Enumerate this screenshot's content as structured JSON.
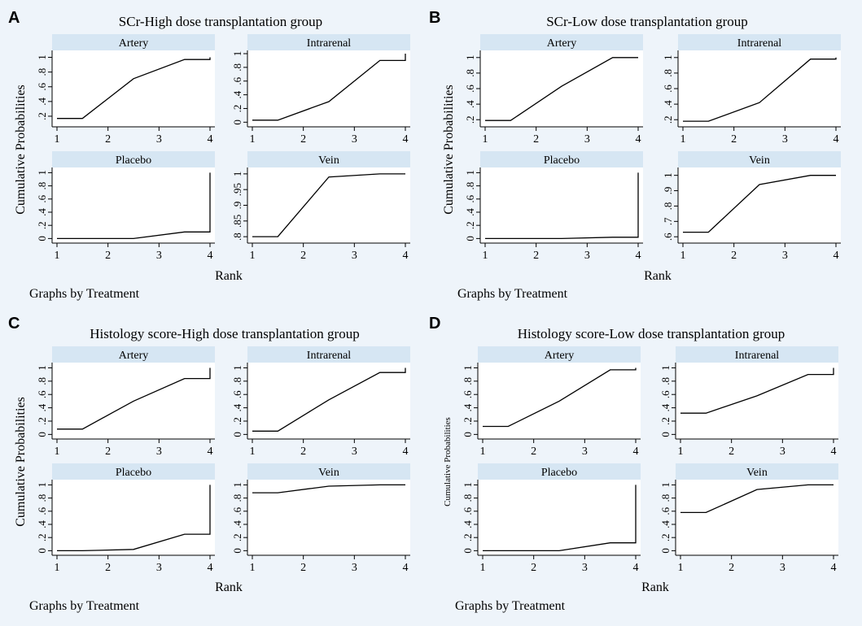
{
  "figure": {
    "xlabel": "Rank",
    "ylabel": "Cumulative Probabilities",
    "note": "Graphs by Treatment",
    "colors": {
      "background": "#eef4fa",
      "plot_bg": "#ffffff",
      "strip_bg": "#d6e6f3",
      "line": "#000000"
    }
  },
  "chart_data": [
    {
      "type": "line",
      "letter": "A",
      "title": "SCr-High dose transplantation group",
      "xlabel": "Rank",
      "ylabel": "Cumulative Probabilities",
      "xlim": [
        1,
        4
      ],
      "x_ticks": [
        "1",
        "2",
        "3",
        "4"
      ],
      "panels": [
        {
          "name": "Artery",
          "ylim": [
            0.1,
            1.05
          ],
          "y_ticks": [
            {
              "v": 0.2,
              "label": ".2"
            },
            {
              "v": 0.4,
              "label": ".4"
            },
            {
              "v": 0.6,
              "label": ".6"
            },
            {
              "v": 0.8,
              "label": ".8"
            },
            {
              "v": 1.0,
              "label": "1"
            }
          ],
          "points": [
            [
              1,
              0.17
            ],
            [
              1.5,
              0.17
            ],
            [
              2.5,
              0.71
            ],
            [
              3.5,
              0.97
            ],
            [
              4,
              0.97
            ],
            [
              4,
              1.0
            ]
          ]
        },
        {
          "name": "Intrarenal",
          "ylim": [
            -0.02,
            1.0
          ],
          "y_ticks": [
            {
              "v": 0,
              "label": "0"
            },
            {
              "v": 0.2,
              "label": ".2"
            },
            {
              "v": 0.4,
              "label": ".4"
            },
            {
              "v": 0.6,
              "label": ".6"
            },
            {
              "v": 0.8,
              "label": ".8"
            },
            {
              "v": 1.0,
              "label": "1"
            }
          ],
          "points": [
            [
              1,
              0.03
            ],
            [
              1.5,
              0.03
            ],
            [
              2.5,
              0.3
            ],
            [
              3.5,
              0.9
            ],
            [
              4,
              0.9
            ],
            [
              4,
              1.0
            ]
          ]
        },
        {
          "name": "Placebo",
          "ylim": [
            -0.02,
            1.03
          ],
          "y_ticks": [
            {
              "v": 0,
              "label": "0"
            },
            {
              "v": 0.2,
              "label": ".2"
            },
            {
              "v": 0.4,
              "label": ".4"
            },
            {
              "v": 0.6,
              "label": ".6"
            },
            {
              "v": 0.8,
              "label": ".8"
            },
            {
              "v": 1.0,
              "label": "1"
            }
          ],
          "points": [
            [
              1,
              0.0
            ],
            [
              1.5,
              0.0
            ],
            [
              2.5,
              0.0
            ],
            [
              3.5,
              0.1
            ],
            [
              4,
              0.1
            ],
            [
              4,
              1.0
            ]
          ]
        },
        {
          "name": "Vein",
          "ylim": [
            0.79,
            1.01
          ],
          "y_ticks": [
            {
              "v": 0.8,
              "label": ".8"
            },
            {
              "v": 0.85,
              "label": ".85"
            },
            {
              "v": 0.9,
              "label": ".9"
            },
            {
              "v": 0.95,
              "label": ".95"
            },
            {
              "v": 1.0,
              "label": "1"
            }
          ],
          "points": [
            [
              1,
              0.8
            ],
            [
              1.5,
              0.8
            ],
            [
              2.5,
              0.99
            ],
            [
              3.5,
              1.0
            ],
            [
              4,
              1.0
            ]
          ]
        }
      ]
    },
    {
      "type": "line",
      "letter": "B",
      "title": "SCr-Low dose transplantation group",
      "xlabel": "Rank",
      "ylabel": "Cumulative Probabilities",
      "xlim": [
        1,
        4
      ],
      "x_ticks": [
        "1",
        "2",
        "3",
        "4"
      ],
      "panels": [
        {
          "name": "Artery",
          "ylim": [
            0.15,
            1.05
          ],
          "y_ticks": [
            {
              "v": 0.2,
              "label": ".2"
            },
            {
              "v": 0.4,
              "label": ".4"
            },
            {
              "v": 0.6,
              "label": ".6"
            },
            {
              "v": 0.8,
              "label": ".8"
            },
            {
              "v": 1.0,
              "label": "1"
            }
          ],
          "points": [
            [
              1,
              0.19
            ],
            [
              1.5,
              0.19
            ],
            [
              2.5,
              0.63
            ],
            [
              3.5,
              1.0
            ],
            [
              4,
              1.0
            ]
          ]
        },
        {
          "name": "Intrarenal",
          "ylim": [
            0.15,
            1.05
          ],
          "y_ticks": [
            {
              "v": 0.2,
              "label": ".2"
            },
            {
              "v": 0.4,
              "label": ".4"
            },
            {
              "v": 0.6,
              "label": ".6"
            },
            {
              "v": 0.8,
              "label": ".8"
            },
            {
              "v": 1.0,
              "label": "1"
            }
          ],
          "points": [
            [
              1,
              0.18
            ],
            [
              1.5,
              0.18
            ],
            [
              2.5,
              0.42
            ],
            [
              3.5,
              0.98
            ],
            [
              4,
              0.98
            ],
            [
              4,
              1.0
            ]
          ]
        },
        {
          "name": "Placebo",
          "ylim": [
            -0.02,
            1.03
          ],
          "y_ticks": [
            {
              "v": 0,
              "label": "0"
            },
            {
              "v": 0.2,
              "label": ".2"
            },
            {
              "v": 0.4,
              "label": ".4"
            },
            {
              "v": 0.6,
              "label": ".6"
            },
            {
              "v": 0.8,
              "label": ".8"
            },
            {
              "v": 1.0,
              "label": "1"
            }
          ],
          "points": [
            [
              1,
              0.0
            ],
            [
              1.5,
              0.0
            ],
            [
              2.5,
              0.0
            ],
            [
              3.5,
              0.02
            ],
            [
              4,
              0.02
            ],
            [
              4,
              1.0
            ]
          ]
        },
        {
          "name": "Vein",
          "ylim": [
            0.58,
            1.03
          ],
          "y_ticks": [
            {
              "v": 0.6,
              "label": ".6"
            },
            {
              "v": 0.7,
              "label": ".7"
            },
            {
              "v": 0.8,
              "label": ".8"
            },
            {
              "v": 0.9,
              "label": ".9"
            },
            {
              "v": 1.0,
              "label": "1"
            }
          ],
          "points": [
            [
              1,
              0.63
            ],
            [
              1.5,
              0.63
            ],
            [
              2.5,
              0.94
            ],
            [
              3.5,
              1.0
            ],
            [
              4,
              1.0
            ]
          ]
        }
      ]
    },
    {
      "type": "line",
      "letter": "C",
      "title": "Histology score-High dose transplantation group",
      "xlabel": "Rank",
      "ylabel": "Cumulative Probabilities",
      "xlim": [
        1,
        4
      ],
      "x_ticks": [
        "1",
        "2",
        "3",
        "4"
      ],
      "panels": [
        {
          "name": "Artery",
          "ylim": [
            -0.02,
            1.03
          ],
          "y_ticks": [
            {
              "v": 0,
              "label": "0"
            },
            {
              "v": 0.2,
              "label": ".2"
            },
            {
              "v": 0.4,
              "label": ".4"
            },
            {
              "v": 0.6,
              "label": ".6"
            },
            {
              "v": 0.8,
              "label": ".8"
            },
            {
              "v": 1.0,
              "label": "1"
            }
          ],
          "points": [
            [
              1,
              0.08
            ],
            [
              1.5,
              0.08
            ],
            [
              2.5,
              0.5
            ],
            [
              3.5,
              0.84
            ],
            [
              4,
              0.84
            ],
            [
              4,
              1.0
            ]
          ]
        },
        {
          "name": "Intrarenal",
          "ylim": [
            -0.02,
            1.03
          ],
          "y_ticks": [
            {
              "v": 0,
              "label": "0"
            },
            {
              "v": 0.2,
              "label": ".2"
            },
            {
              "v": 0.4,
              "label": ".4"
            },
            {
              "v": 0.6,
              "label": ".6"
            },
            {
              "v": 0.8,
              "label": ".8"
            },
            {
              "v": 1.0,
              "label": "1"
            }
          ],
          "points": [
            [
              1,
              0.05
            ],
            [
              1.5,
              0.05
            ],
            [
              2.5,
              0.52
            ],
            [
              3.5,
              0.93
            ],
            [
              4,
              0.93
            ],
            [
              4,
              1.0
            ]
          ]
        },
        {
          "name": "Placebo",
          "ylim": [
            -0.02,
            1.03
          ],
          "y_ticks": [
            {
              "v": 0,
              "label": "0"
            },
            {
              "v": 0.2,
              "label": ".2"
            },
            {
              "v": 0.4,
              "label": ".4"
            },
            {
              "v": 0.6,
              "label": ".6"
            },
            {
              "v": 0.8,
              "label": ".8"
            },
            {
              "v": 1.0,
              "label": "1"
            }
          ],
          "points": [
            [
              1,
              0.0
            ],
            [
              1.5,
              0.0
            ],
            [
              2.5,
              0.02
            ],
            [
              3.5,
              0.25
            ],
            [
              4,
              0.25
            ],
            [
              4,
              1.0
            ]
          ]
        },
        {
          "name": "Vein",
          "ylim": [
            -0.02,
            1.03
          ],
          "y_ticks": [
            {
              "v": 0,
              "label": "0"
            },
            {
              "v": 0.2,
              "label": ".2"
            },
            {
              "v": 0.4,
              "label": ".4"
            },
            {
              "v": 0.6,
              "label": ".6"
            },
            {
              "v": 0.8,
              "label": ".8"
            },
            {
              "v": 1.0,
              "label": "1"
            }
          ],
          "points": [
            [
              1,
              0.88
            ],
            [
              1.5,
              0.88
            ],
            [
              2.5,
              0.98
            ],
            [
              3.5,
              1.0
            ],
            [
              4,
              1.0
            ]
          ]
        }
      ]
    },
    {
      "type": "line",
      "letter": "D",
      "title": "Histology score-Low dose transplantation group",
      "xlabel": "Rank",
      "ylabel": "Cumulative Probabilities",
      "xlim": [
        1,
        4
      ],
      "x_ticks": [
        "1",
        "2",
        "3",
        "4"
      ],
      "panels": [
        {
          "name": "Artery",
          "ylim": [
            -0.02,
            1.03
          ],
          "y_ticks": [
            {
              "v": 0,
              "label": "0"
            },
            {
              "v": 0.2,
              "label": ".2"
            },
            {
              "v": 0.4,
              "label": ".4"
            },
            {
              "v": 0.6,
              "label": ".6"
            },
            {
              "v": 0.8,
              "label": ".8"
            },
            {
              "v": 1.0,
              "label": "1"
            }
          ],
          "points": [
            [
              1,
              0.12
            ],
            [
              1.5,
              0.12
            ],
            [
              2.5,
              0.5
            ],
            [
              3.5,
              0.97
            ],
            [
              4,
              0.97
            ],
            [
              4,
              1.0
            ]
          ]
        },
        {
          "name": "Intrarenal",
          "ylim": [
            -0.02,
            1.03
          ],
          "y_ticks": [
            {
              "v": 0,
              "label": "0"
            },
            {
              "v": 0.2,
              "label": ".2"
            },
            {
              "v": 0.4,
              "label": ".4"
            },
            {
              "v": 0.6,
              "label": ".6"
            },
            {
              "v": 0.8,
              "label": ".8"
            },
            {
              "v": 1.0,
              "label": "1"
            }
          ],
          "points": [
            [
              1,
              0.32
            ],
            [
              1.5,
              0.32
            ],
            [
              2.5,
              0.58
            ],
            [
              3.5,
              0.9
            ],
            [
              4,
              0.9
            ],
            [
              4,
              1.0
            ]
          ]
        },
        {
          "name": "Placebo",
          "ylim": [
            -0.02,
            1.03
          ],
          "y_ticks": [
            {
              "v": 0,
              "label": "0"
            },
            {
              "v": 0.2,
              "label": ".2"
            },
            {
              "v": 0.4,
              "label": ".4"
            },
            {
              "v": 0.6,
              "label": ".6"
            },
            {
              "v": 0.8,
              "label": ".8"
            },
            {
              "v": 1.0,
              "label": "1"
            }
          ],
          "points": [
            [
              1,
              0.0
            ],
            [
              1.5,
              0.0
            ],
            [
              2.5,
              0.0
            ],
            [
              3.5,
              0.12
            ],
            [
              4,
              0.12
            ],
            [
              4,
              1.0
            ]
          ]
        },
        {
          "name": "Vein",
          "ylim": [
            -0.02,
            1.03
          ],
          "y_ticks": [
            {
              "v": 0,
              "label": "0"
            },
            {
              "v": 0.2,
              "label": ".2"
            },
            {
              "v": 0.4,
              "label": ".4"
            },
            {
              "v": 0.6,
              "label": ".6"
            },
            {
              "v": 0.8,
              "label": ".8"
            },
            {
              "v": 1.0,
              "label": "1"
            }
          ],
          "points": [
            [
              1,
              0.58
            ],
            [
              1.5,
              0.58
            ],
            [
              2.5,
              0.93
            ],
            [
              3.5,
              1.0
            ],
            [
              4,
              1.0
            ]
          ]
        }
      ]
    }
  ]
}
